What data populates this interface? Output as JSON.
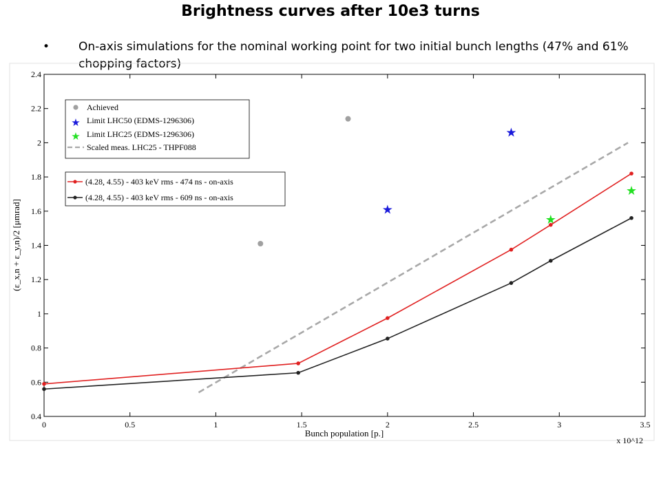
{
  "slide": {
    "title": "Brightness curves after 10e3 turns",
    "bullet": "On-axis simulations for the nominal working point for two initial bunch lengths (47% and 61% chopping factors)"
  },
  "chart_data": {
    "type": "line",
    "title": "",
    "xlabel": "Bunch population [p.]",
    "ylabel": "(ε_x,n + ε_y,n)/2 [μmrad]",
    "x_multiplier": "x 10^12",
    "xlim": [
      0,
      3.5
    ],
    "ylim": [
      0.4,
      2.4
    ],
    "xticks": [
      0,
      0.5,
      1,
      1.5,
      2,
      2.5,
      3,
      3.5
    ],
    "yticks": [
      0.4,
      0.6,
      0.8,
      1,
      1.2,
      1.4,
      1.6,
      1.8,
      2,
      2.2,
      2.4
    ],
    "xtick_labels": [
      "0",
      "0.5",
      "1",
      "1.5",
      "2",
      "2.5",
      "3",
      "3.5"
    ],
    "ytick_labels": [
      "0.4",
      "0.6",
      "0.8",
      "1",
      "1.2",
      "1.4",
      "1.6",
      "1.8",
      "2",
      "2.2",
      "2.4"
    ],
    "grid": false,
    "series": [
      {
        "name": "Achieved",
        "kind": "marker",
        "marker": "circle",
        "color": "#a0a0a0",
        "points": [
          [
            1.26,
            1.41
          ],
          [
            1.77,
            2.14
          ]
        ]
      },
      {
        "name": "Limit LHC50 (EDMS-1296306)",
        "kind": "marker",
        "marker": "star",
        "color": "#1a1adb",
        "points": [
          [
            2.0,
            1.61
          ],
          [
            2.72,
            2.06
          ]
        ]
      },
      {
        "name": "Limit LHC25 (EDMS-1296306)",
        "kind": "marker",
        "marker": "star",
        "color": "#22e022",
        "points": [
          [
            2.95,
            1.55
          ],
          [
            3.42,
            1.72
          ]
        ]
      },
      {
        "name": "Scaled meas. LHC25 - THPF088",
        "kind": "dashed",
        "color": "#a8a8a8",
        "points": [
          [
            0.9,
            0.54
          ],
          [
            3.4,
            2.0
          ]
        ]
      },
      {
        "name": "(4.28, 4.55) - 403 keV rms - 474 ns - on-axis",
        "kind": "line-marker",
        "color": "#e02020",
        "points": [
          [
            0,
            0.59
          ],
          [
            1.48,
            0.71
          ],
          [
            2.0,
            0.975
          ],
          [
            2.72,
            1.375
          ],
          [
            2.95,
            1.52
          ],
          [
            3.42,
            1.82
          ]
        ]
      },
      {
        "name": "(4.28, 4.55) - 403 keV rms - 609 ns - on-axis",
        "kind": "line-marker",
        "color": "#222222",
        "points": [
          [
            0,
            0.56
          ],
          [
            1.48,
            0.655
          ],
          [
            2.0,
            0.855
          ],
          [
            2.72,
            1.18
          ],
          [
            2.95,
            1.31
          ],
          [
            3.42,
            1.56
          ]
        ]
      }
    ],
    "legend": [
      {
        "entries": [
          "Achieved",
          "Limit LHC50 (EDMS-1296306)",
          "Limit LHC25 (EDMS-1296306)",
          "Scaled meas. LHC25 - THPF088"
        ],
        "placement": "top-left"
      },
      {
        "entries": [
          "(4.28, 4.55) - 403 keV rms - 474 ns - on-axis",
          "(4.28, 4.55) - 403 keV rms - 609 ns - on-axis"
        ],
        "placement": "upper-left"
      }
    ]
  }
}
